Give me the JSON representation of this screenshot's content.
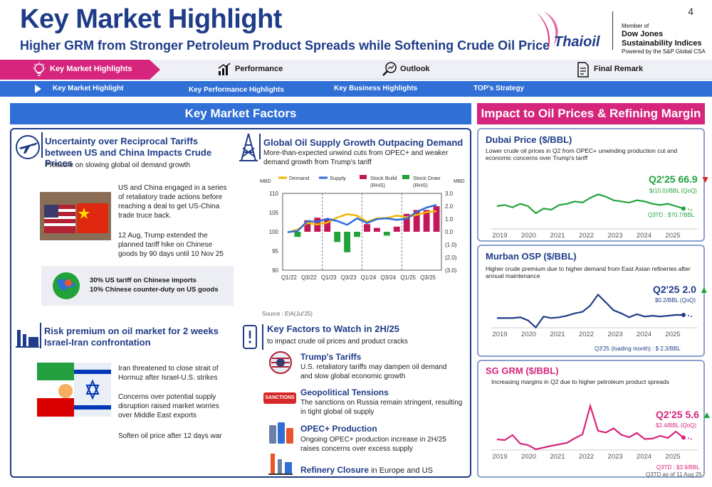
{
  "header": {
    "title": "Key Market Highlight",
    "subtitle": "Higher GRM from Stronger Petroleum Product Spreads while Softening Crude Oil Price",
    "page_number": "4",
    "logo": "Thaioil",
    "dj_member": "Member of",
    "dj_name1": "Dow Jones",
    "dj_name2": "Sustainability Indices",
    "dj_powered": "Powered by the S&P Global CSA"
  },
  "nav_main": [
    {
      "label": "Key Market Highlights",
      "icon": "lightbulb-icon"
    },
    {
      "label": "Performance",
      "icon": "bar-chart-icon"
    },
    {
      "label": "Outlook",
      "icon": "magnifier-chart-icon"
    },
    {
      "label": "Final Remark",
      "icon": "document-icon"
    }
  ],
  "nav_sub": [
    "Key Market Highlight",
    "Key Performance Highlights",
    "Key Business Highlights",
    "TOP's Strategy"
  ],
  "left_section": {
    "heading": "Key Market Factors",
    "tariff": {
      "title": "Uncertainty over Reciprocal Tariffs between US and China Impacts Crude Prices",
      "subtitle": "Pressure on slowing global oil demand growth",
      "p1": "US and China engaged in a series of retaliatory trade actions before reaching a deal to get US-China trade truce back.",
      "p2": "12 Aug, Trump extended the planned tariff hike on Chinese goods by 90 days until 10 Nov 25",
      "fact1": "30% US tariff on Chinese imports",
      "fact2": "10% Chinese counter-duty on US goods"
    },
    "risk": {
      "title": "Risk premium on oil market for 2 weeks Israel-Iran confrontation",
      "p1": "Iran threatened to close strait of Hormuz after Israel-U.S. strikes",
      "p2": "Concerns over potential supply disruption raised market worries over Middle East exports",
      "p3": "Soften oil price after 12 days war"
    },
    "supply": {
      "title": "Global Oil Supply Growth Outpacing Demand",
      "subtitle": "More-than-expected unwind cuts from OPEC+ and weaker demand growth from Trump's tariff",
      "source": "Source : EIA(Jul'25)"
    },
    "factors": {
      "title": "Key Factors to Watch in 2H/25",
      "subtitle": "to impact crude oil prices and product cracks",
      "items": [
        {
          "title": "Trump's Tariffs",
          "text": "U.S. retaliatory tariffs may dampen oil demand and slow global economic growth"
        },
        {
          "title": "Geopolitical Tensions",
          "text": "The sanctions on Russia remain stringent, resulting in tight global oil supply",
          "badge": "SANCTIONS"
        },
        {
          "title": "OPEC+ Production",
          "text": "Ongoing OPEC+ production increase in 2H/25 raises concerns over excess supply"
        },
        {
          "title": "Refinery Closure",
          "text": "in Europe and US"
        }
      ]
    }
  },
  "right_section": {
    "heading": "Impact to Oil Prices & Refining Margin",
    "dubai": {
      "title": "Dubai Price ($/BBL)",
      "desc": "Lower crude oil prices in Q2 from OPEC+ unwinding production cut and economic concerns over Trump's tariff",
      "value": "Q2'25 66.9",
      "change": "$(10.0)/BBL (QoQ)",
      "extra": "Q3TD : $70.7/BBL",
      "values": [
        72,
        73,
        71,
        74,
        72,
        66,
        70,
        69,
        73,
        74,
        76,
        75,
        79,
        82,
        80,
        77,
        76,
        75,
        77,
        76,
        74,
        73,
        74,
        72,
        70
      ]
    },
    "murban": {
      "title": "Murban OSP ($/BBL)",
      "desc": "Higher crude premium due to higher demand from East Asian refineries after annual maintenance",
      "value": "Q2'25 2.0",
      "change": "$0.2/BBL (QoQ)",
      "extra": "Q3'25 (loading month) : $ 2.3/BBL",
      "values": [
        1.6,
        1.6,
        1.6,
        1.7,
        1.3,
        0.4,
        1.8,
        1.6,
        1.7,
        1.9,
        2.2,
        2.4,
        3.2,
        4.6,
        3.6,
        2.6,
        2.2,
        1.7,
        2.1,
        1.8,
        1.9,
        1.8,
        1.9,
        2.0,
        2.0
      ]
    },
    "grm": {
      "title": "SG GRM ($/BBL)",
      "desc": "Increasing margins in Q2 due to higher petroleum product spreads",
      "value": "Q2'25 5.6",
      "change": "$2.4/BBL (QoQ)",
      "extra": "Q3TD : $3.9/BBL",
      "note": "Q3TD as of 11 Aug 25",
      "values": [
        3.4,
        3.2,
        4.6,
        2.2,
        1.8,
        0.6,
        1.1,
        1.6,
        2.0,
        2.4,
        3.7,
        4.8,
        12.8,
        5.8,
        5.3,
        6.5,
        4.7,
        4.0,
        5.2,
        3.5,
        3.6,
        4.4,
        3.8,
        5.6,
        3.9
      ]
    },
    "years": [
      "2019",
      "2020",
      "2021",
      "2022",
      "2023",
      "2024",
      "2025"
    ]
  },
  "chart_data": {
    "type": "line",
    "title": "",
    "left_unit": "MBD",
    "right_unit": "MBD",
    "categories": [
      "Q1/22",
      "Q2/22",
      "Q3/22",
      "Q4/22",
      "Q1/23",
      "Q2/23",
      "Q3/23",
      "Q4/23",
      "Q1/24",
      "Q2/24",
      "Q3/24",
      "Q4/24",
      "Q1/25",
      "Q2/25",
      "Q3/25",
      "Q4/25"
    ],
    "tick_labels": [
      "Q1/22",
      "Q3/22",
      "Q1/23",
      "Q3/23",
      "Q1/24",
      "Q3/24",
      "Q1/25",
      "Q3/25"
    ],
    "ylim_left": [
      90,
      110
    ],
    "yticks_left": [
      "110",
      "105",
      "100",
      "95",
      "90"
    ],
    "ylim_right": [
      -3,
      3
    ],
    "yticks_right": [
      "3.0",
      "2.0",
      "1.0",
      "0.0",
      "(1.0)",
      "(2.0)",
      "(3.0)"
    ],
    "series": [
      {
        "name": "Demand",
        "axis": "left",
        "kind": "line",
        "color": "#f2b705",
        "values": [
          99.8,
          100.6,
          102.3,
          101.9,
          102.4,
          103.7,
          104.6,
          104.2,
          102.6,
          103.5,
          103.6,
          104.2,
          103.8,
          104.4,
          105.1,
          105.4
        ]
      },
      {
        "name": "Supply",
        "axis": "left",
        "kind": "line",
        "color": "#2f6fd6",
        "values": [
          99.9,
          100.2,
          102.8,
          102.6,
          103.4,
          102.8,
          101.8,
          103.5,
          102.3,
          103.3,
          103.5,
          103.1,
          103.4,
          105.2,
          106.3,
          107.0
        ]
      },
      {
        "name": "Stock Build (RHS)",
        "axis": "right",
        "kind": "bar",
        "color": "#c2185b",
        "values": [
          0,
          0,
          0.9,
          1.1,
          1.0,
          0,
          0,
          0,
          0.6,
          0.3,
          0,
          0.4,
          1.4,
          1.7,
          1.7,
          2.0
        ]
      },
      {
        "name": "Stock Draw (RHS)",
        "axis": "right",
        "kind": "bar",
        "color": "#21a33a",
        "values": [
          0,
          -0.4,
          0,
          0,
          0,
          -0.8,
          -1.6,
          -0.4,
          0,
          0,
          -0.3,
          0,
          0,
          0,
          0,
          0
        ]
      }
    ]
  }
}
